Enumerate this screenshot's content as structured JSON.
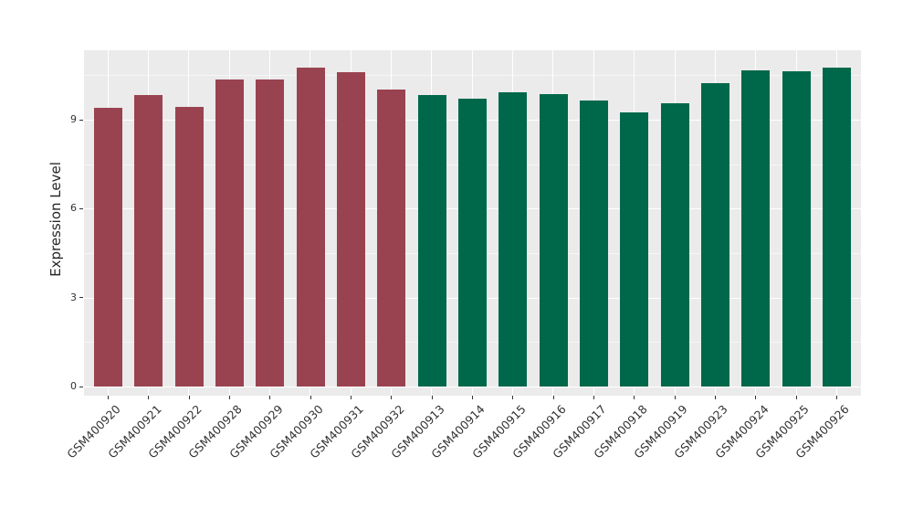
{
  "chart_data": {
    "type": "bar",
    "title": "",
    "xlabel": "",
    "ylabel": "Expression Level",
    "yticks": [
      0,
      3,
      6,
      9
    ],
    "minor_yticks": [
      1.5,
      4.5,
      7.5,
      10.5
    ],
    "ylim": [
      -0.35,
      11.35
    ],
    "grid": true,
    "legend": "none",
    "panel_background_color": "#EBEBEB",
    "gridline_color": "#FFFFFF",
    "tick_text_color": "#333333",
    "categories": [
      "GSM400920",
      "GSM400921",
      "GSM400922",
      "GSM400928",
      "GSM400929",
      "GSM400930",
      "GSM400931",
      "GSM400932",
      "GSM400913",
      "GSM400914",
      "GSM400915",
      "GSM400916",
      "GSM400917",
      "GSM400918",
      "GSM400919",
      "GSM400923",
      "GSM400924",
      "GSM400925",
      "GSM400926"
    ],
    "values": [
      9.39,
      9.83,
      9.44,
      10.37,
      10.35,
      10.76,
      10.59,
      10.01,
      9.84,
      9.72,
      9.92,
      9.87,
      9.65,
      9.24,
      9.57,
      10.23,
      10.68,
      10.63,
      10.76
    ],
    "group_index": [
      0,
      0,
      0,
      0,
      0,
      0,
      0,
      0,
      1,
      1,
      1,
      1,
      1,
      1,
      1,
      1,
      1,
      1,
      1
    ],
    "group_colors": [
      "#9A4350",
      "#00684A"
    ]
  }
}
